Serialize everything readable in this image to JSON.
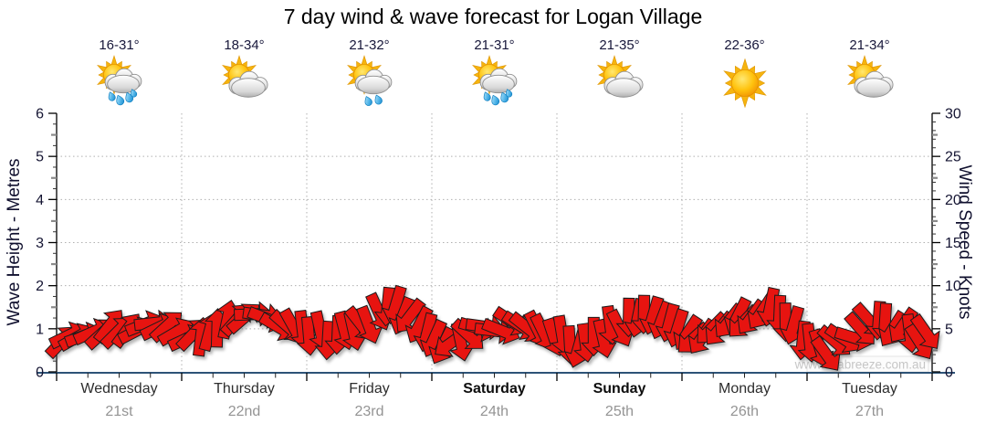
{
  "title": "7 day wind & wave forecast for Logan Village",
  "watermark": "www.seabreeze.com.au",
  "days": [
    {
      "name": "Wednesday",
      "date": "21st",
      "temp": "16-31°",
      "icon": "sun-cloud-rain",
      "bold": false
    },
    {
      "name": "Thursday",
      "date": "22nd",
      "temp": "18-34°",
      "icon": "sun-cloud",
      "bold": false
    },
    {
      "name": "Friday",
      "date": "23rd",
      "temp": "21-32°",
      "icon": "sun-cloud-drizzle",
      "bold": false
    },
    {
      "name": "Saturday",
      "date": "24th",
      "temp": "21-31°",
      "icon": "sun-cloud-rain",
      "bold": true
    },
    {
      "name": "Sunday",
      "date": "25th",
      "temp": "21-35°",
      "icon": "sun-cloud",
      "bold": true
    },
    {
      "name": "Monday",
      "date": "26th",
      "temp": "22-36°",
      "icon": "sun",
      "bold": false
    },
    {
      "name": "Tuesday",
      "date": "27th",
      "temp": "21-34°",
      "icon": "sun-cloud",
      "bold": false
    }
  ],
  "colors": {
    "arrow": "#e71410",
    "arrow_outline": "#1c1c1c",
    "baseline": "#2d5377",
    "axis_line": "#000000",
    "grid": "#b0b0b0",
    "axis_text": "#141432",
    "date_text": "#949494",
    "watermark_text": "#c6c6c6"
  },
  "chart_data": {
    "type": "wind_vector_series",
    "title": "7 day wind & wave forecast for Logan Village",
    "x": {
      "days": [
        "Wednesday 21st",
        "Thursday 22nd",
        "Friday 23rd",
        "Saturday 24th",
        "Sunday 25th",
        "Monday 26th",
        "Tuesday 27th"
      ],
      "span_hours": 168,
      "gridlines": "dotted vertical line at each day boundary"
    },
    "y_left": {
      "label": "Wave Height - Metres",
      "min": 0,
      "max": 6,
      "ticks": [
        0,
        1,
        2,
        3,
        4,
        5,
        6
      ]
    },
    "y_right": {
      "label": "Wind Speed - Knots",
      "min": 0,
      "max": 30,
      "ticks": [
        0,
        5,
        10,
        15,
        20,
        25,
        30
      ]
    },
    "legend": "dense red arrows plot wind speed (right axis) and wind direction over 7 days",
    "dir_convention": "degrees: 0 = arrow points right (east), negative = up, positive = down/clockwise",
    "wind_keyframes_hour_knots_dirdeg": [
      [
        0,
        4.0,
        -35
      ],
      [
        6,
        4.5,
        -25
      ],
      [
        12,
        5.0,
        -55
      ],
      [
        18,
        5.5,
        -15
      ],
      [
        21,
        5.8,
        -45
      ],
      [
        24,
        3.8,
        -10
      ],
      [
        28,
        4.5,
        -80
      ],
      [
        32,
        5.5,
        -95
      ],
      [
        36,
        6.3,
        -30
      ],
      [
        40,
        6.0,
        15
      ],
      [
        44,
        5.0,
        40
      ],
      [
        48,
        4.5,
        90
      ],
      [
        54,
        4.0,
        90
      ],
      [
        58,
        4.8,
        60
      ],
      [
        62,
        6.8,
        75
      ],
      [
        64,
        7.8,
        100
      ],
      [
        68,
        6.0,
        120
      ],
      [
        72,
        4.5,
        110
      ],
      [
        76,
        2.8,
        135
      ],
      [
        80,
        4.8,
        10
      ],
      [
        84,
        5.0,
        5
      ],
      [
        88,
        5.6,
        30
      ],
      [
        92,
        5.0,
        55
      ],
      [
        96,
        4.0,
        75
      ],
      [
        100,
        2.6,
        95
      ],
      [
        104,
        4.0,
        85
      ],
      [
        108,
        5.5,
        70
      ],
      [
        112,
        6.8,
        95
      ],
      [
        116,
        5.8,
        105
      ],
      [
        120,
        4.5,
        120
      ],
      [
        124,
        4.0,
        130
      ],
      [
        128,
        5.5,
        115
      ],
      [
        132,
        6.3,
        125
      ],
      [
        136,
        7.4,
        110
      ],
      [
        140,
        6.2,
        100
      ],
      [
        144,
        3.5,
        95
      ],
      [
        148,
        2.5,
        45
      ],
      [
        152,
        4.0,
        20
      ],
      [
        156,
        6.0,
        60
      ],
      [
        158,
        6.4,
        95
      ],
      [
        162,
        5.0,
        120
      ],
      [
        165,
        3.8,
        60
      ],
      [
        168,
        4.3,
        45
      ]
    ]
  }
}
